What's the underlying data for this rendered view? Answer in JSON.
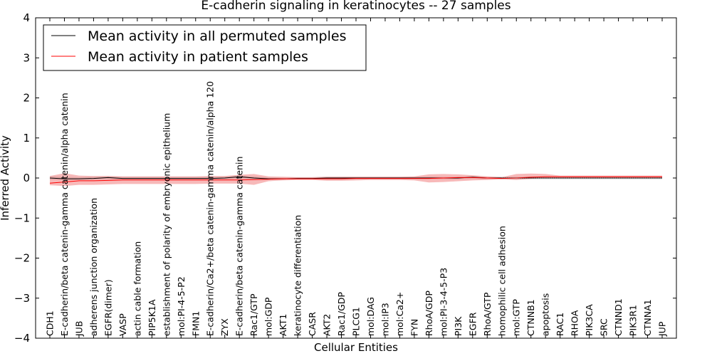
{
  "chart_data": {
    "type": "line",
    "title": "E-cadherin signaling in keratinocytes -- 27 samples",
    "xlabel": "Cellular Entities",
    "ylabel": "Inferred Activity",
    "ylim": [
      -4,
      4
    ],
    "yticks": [
      "−4",
      "−3",
      "−2",
      "−1",
      "0",
      "1",
      "2",
      "3",
      "4"
    ],
    "grid": false,
    "legend_position": "top-left",
    "categories": [
      "CDH1",
      "E-cadherin/beta catenin-gamma catenin/alpha catenin",
      "JUB",
      "adherens junction organization",
      "EGFR(dimer)",
      "VASP",
      "actin cable formation",
      "PIP5K1A",
      "establishment of polarity of embryonic epithelium",
      "mol:PI-4-5-P2",
      "FMN1",
      "E-cadherin/Ca2+/beta catenin-gamma catenin/alpha 120",
      "ZYX",
      "E-cadherin/beta catenin-gamma catenin",
      "Rac1/GTP",
      "mol:GDP",
      "AKT1",
      "keratinocyte differentiation",
      "CASR",
      "AKT2",
      "Rac1/GDP",
      "PLCG1",
      "mol:DAG",
      "mol:IP3",
      "mol:Ca2+",
      "FYN",
      "RhoA/GDP",
      "mol:PI-3-4-5-P3",
      "PI3K",
      "EGFR",
      "RhoA/GTP",
      "homophilic cell adhesion",
      "mol:GTP",
      "CTNNB1",
      "apoptosis",
      "RAC1",
      "RHOA",
      "PIK3CA",
      "SRC",
      "CTNND1",
      "PIK3R1",
      "CTNNA1",
      "JUP"
    ],
    "series": [
      {
        "name": "Mean activity in all permuted samples",
        "color": "#000000",
        "band_color": "#b0b0b0",
        "values": [
          0.0,
          -0.02,
          -0.02,
          -0.01,
          0.01,
          -0.01,
          -0.01,
          -0.01,
          -0.01,
          -0.01,
          -0.01,
          -0.01,
          0.0,
          0.03,
          0.0,
          -0.02,
          -0.02,
          -0.01,
          -0.01,
          0.0,
          0.0,
          0.0,
          0.0,
          0.0,
          0.0,
          0.0,
          0.0,
          0.0,
          0.0,
          0.02,
          0.0,
          0.0,
          0.0,
          0.0,
          0.0,
          0.0,
          0.0,
          0.0,
          0.0,
          0.0,
          0.0,
          0.0,
          0.0
        ],
        "lower": [
          -0.05,
          -0.06,
          -0.05,
          -0.04,
          -0.03,
          -0.04,
          -0.04,
          -0.04,
          -0.04,
          -0.04,
          -0.04,
          -0.04,
          -0.03,
          -0.01,
          -0.03,
          -0.04,
          -0.04,
          -0.03,
          -0.03,
          -0.03,
          -0.03,
          -0.03,
          -0.03,
          -0.03,
          -0.03,
          -0.03,
          -0.03,
          -0.03,
          -0.03,
          -0.02,
          -0.03,
          -0.03,
          -0.03,
          -0.03,
          -0.03,
          -0.03,
          -0.03,
          -0.03,
          -0.03,
          -0.03,
          -0.03,
          -0.03,
          -0.03
        ],
        "upper": [
          0.05,
          0.03,
          0.02,
          0.03,
          0.05,
          0.03,
          0.03,
          0.03,
          0.03,
          0.03,
          0.03,
          0.03,
          0.04,
          0.07,
          0.04,
          0.01,
          0.01,
          0.02,
          0.02,
          0.03,
          0.03,
          0.03,
          0.03,
          0.03,
          0.03,
          0.03,
          0.03,
          0.03,
          0.03,
          0.05,
          0.03,
          0.03,
          0.03,
          0.03,
          0.03,
          0.03,
          0.03,
          0.03,
          0.03,
          0.03,
          0.03,
          0.03,
          0.03
        ]
      },
      {
        "name": "Mean activity in patient samples",
        "color": "#ff0000",
        "band_color": "#f08080",
        "values": [
          -0.13,
          -0.1,
          -0.07,
          -0.07,
          -0.06,
          -0.05,
          -0.05,
          -0.05,
          -0.05,
          -0.05,
          -0.05,
          -0.05,
          -0.05,
          -0.05,
          -0.04,
          -0.03,
          -0.02,
          -0.02,
          -0.02,
          -0.02,
          -0.02,
          -0.01,
          -0.01,
          -0.01,
          -0.01,
          -0.01,
          -0.01,
          0.0,
          0.01,
          0.01,
          0.0,
          -0.01,
          0.0,
          0.02,
          0.03,
          0.03,
          0.03,
          0.03,
          0.03,
          0.03,
          0.03,
          0.03,
          0.03
        ],
        "lower": [
          -0.18,
          -0.2,
          -0.17,
          -0.17,
          -0.16,
          -0.15,
          -0.15,
          -0.15,
          -0.15,
          -0.15,
          -0.15,
          -0.14,
          -0.14,
          -0.14,
          -0.17,
          -0.08,
          -0.06,
          -0.05,
          -0.05,
          -0.07,
          -0.07,
          -0.06,
          -0.05,
          -0.05,
          -0.05,
          -0.06,
          -0.11,
          -0.1,
          -0.08,
          -0.06,
          -0.05,
          -0.03,
          -0.05,
          -0.02,
          0.0,
          0.0,
          0.0,
          0.0,
          0.0,
          0.0,
          0.0,
          0.0,
          0.0
        ],
        "upper": [
          0.05,
          0.12,
          0.06,
          0.05,
          0.05,
          0.04,
          0.04,
          0.04,
          0.04,
          0.04,
          0.04,
          0.05,
          0.05,
          0.08,
          0.1,
          0.04,
          0.03,
          0.02,
          0.02,
          0.03,
          0.03,
          0.03,
          0.03,
          0.03,
          0.03,
          0.04,
          0.09,
          0.1,
          0.09,
          0.07,
          0.04,
          0.02,
          0.1,
          0.11,
          0.1,
          0.06,
          0.06,
          0.06,
          0.06,
          0.06,
          0.06,
          0.06,
          0.06
        ]
      }
    ]
  }
}
